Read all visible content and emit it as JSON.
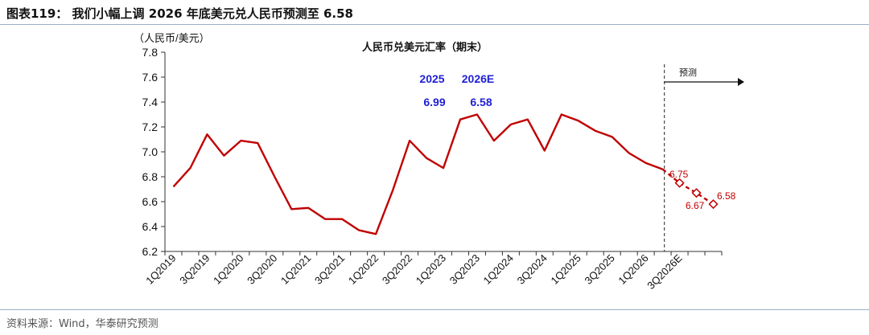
{
  "figure_title": "图表119：  我们小幅上调 2026 年底美元兑人民币预测至 6.58",
  "source_note": "资料来源：Wind，华泰研究预测",
  "colors": {
    "series": "#c00000",
    "annotation_blue": "#1f1fd6",
    "axis": "#333333"
  },
  "chart_data": {
    "type": "line",
    "title": "人民币兑美元汇率（期末）",
    "ylabel": "（人民币/美元）",
    "ylim": [
      6.2,
      7.8
    ],
    "yticks": [
      "6.2",
      "6.4",
      "6.6",
      "6.8",
      "7.0",
      "7.2",
      "7.4",
      "7.6",
      "7.8"
    ],
    "x_tick_labels": [
      "1Q2019",
      "3Q2019",
      "1Q2020",
      "3Q2020",
      "1Q2021",
      "3Q2021",
      "1Q2022",
      "3Q2022",
      "1Q2023",
      "3Q2023",
      "1Q2024",
      "3Q2024",
      "1Q2025",
      "3Q2025",
      "1Q2026",
      "3Q2026E"
    ],
    "series": [
      {
        "style": "solid",
        "values": [
          6.72,
          6.87,
          7.14,
          6.97,
          7.09,
          7.07,
          6.8,
          6.54,
          6.55,
          6.46,
          6.46,
          6.37,
          6.34,
          6.69,
          7.09,
          6.95,
          6.87,
          7.26,
          7.3,
          7.09,
          7.22,
          7.26,
          7.01,
          7.3,
          7.25,
          7.17,
          7.12,
          6.99,
          6.91,
          6.86
        ]
      },
      {
        "style": "dashed",
        "start_index": 29,
        "values": [
          6.86,
          6.75,
          6.67,
          6.58
        ]
      }
    ],
    "forecast_label": "预测",
    "point_labels": [
      "6.75",
      "6.67",
      "6.58"
    ],
    "annotations": {
      "year_2025": "2025",
      "year_2026e": "2026E",
      "value_2025": "6.99",
      "value_2026e": "6.58"
    }
  }
}
